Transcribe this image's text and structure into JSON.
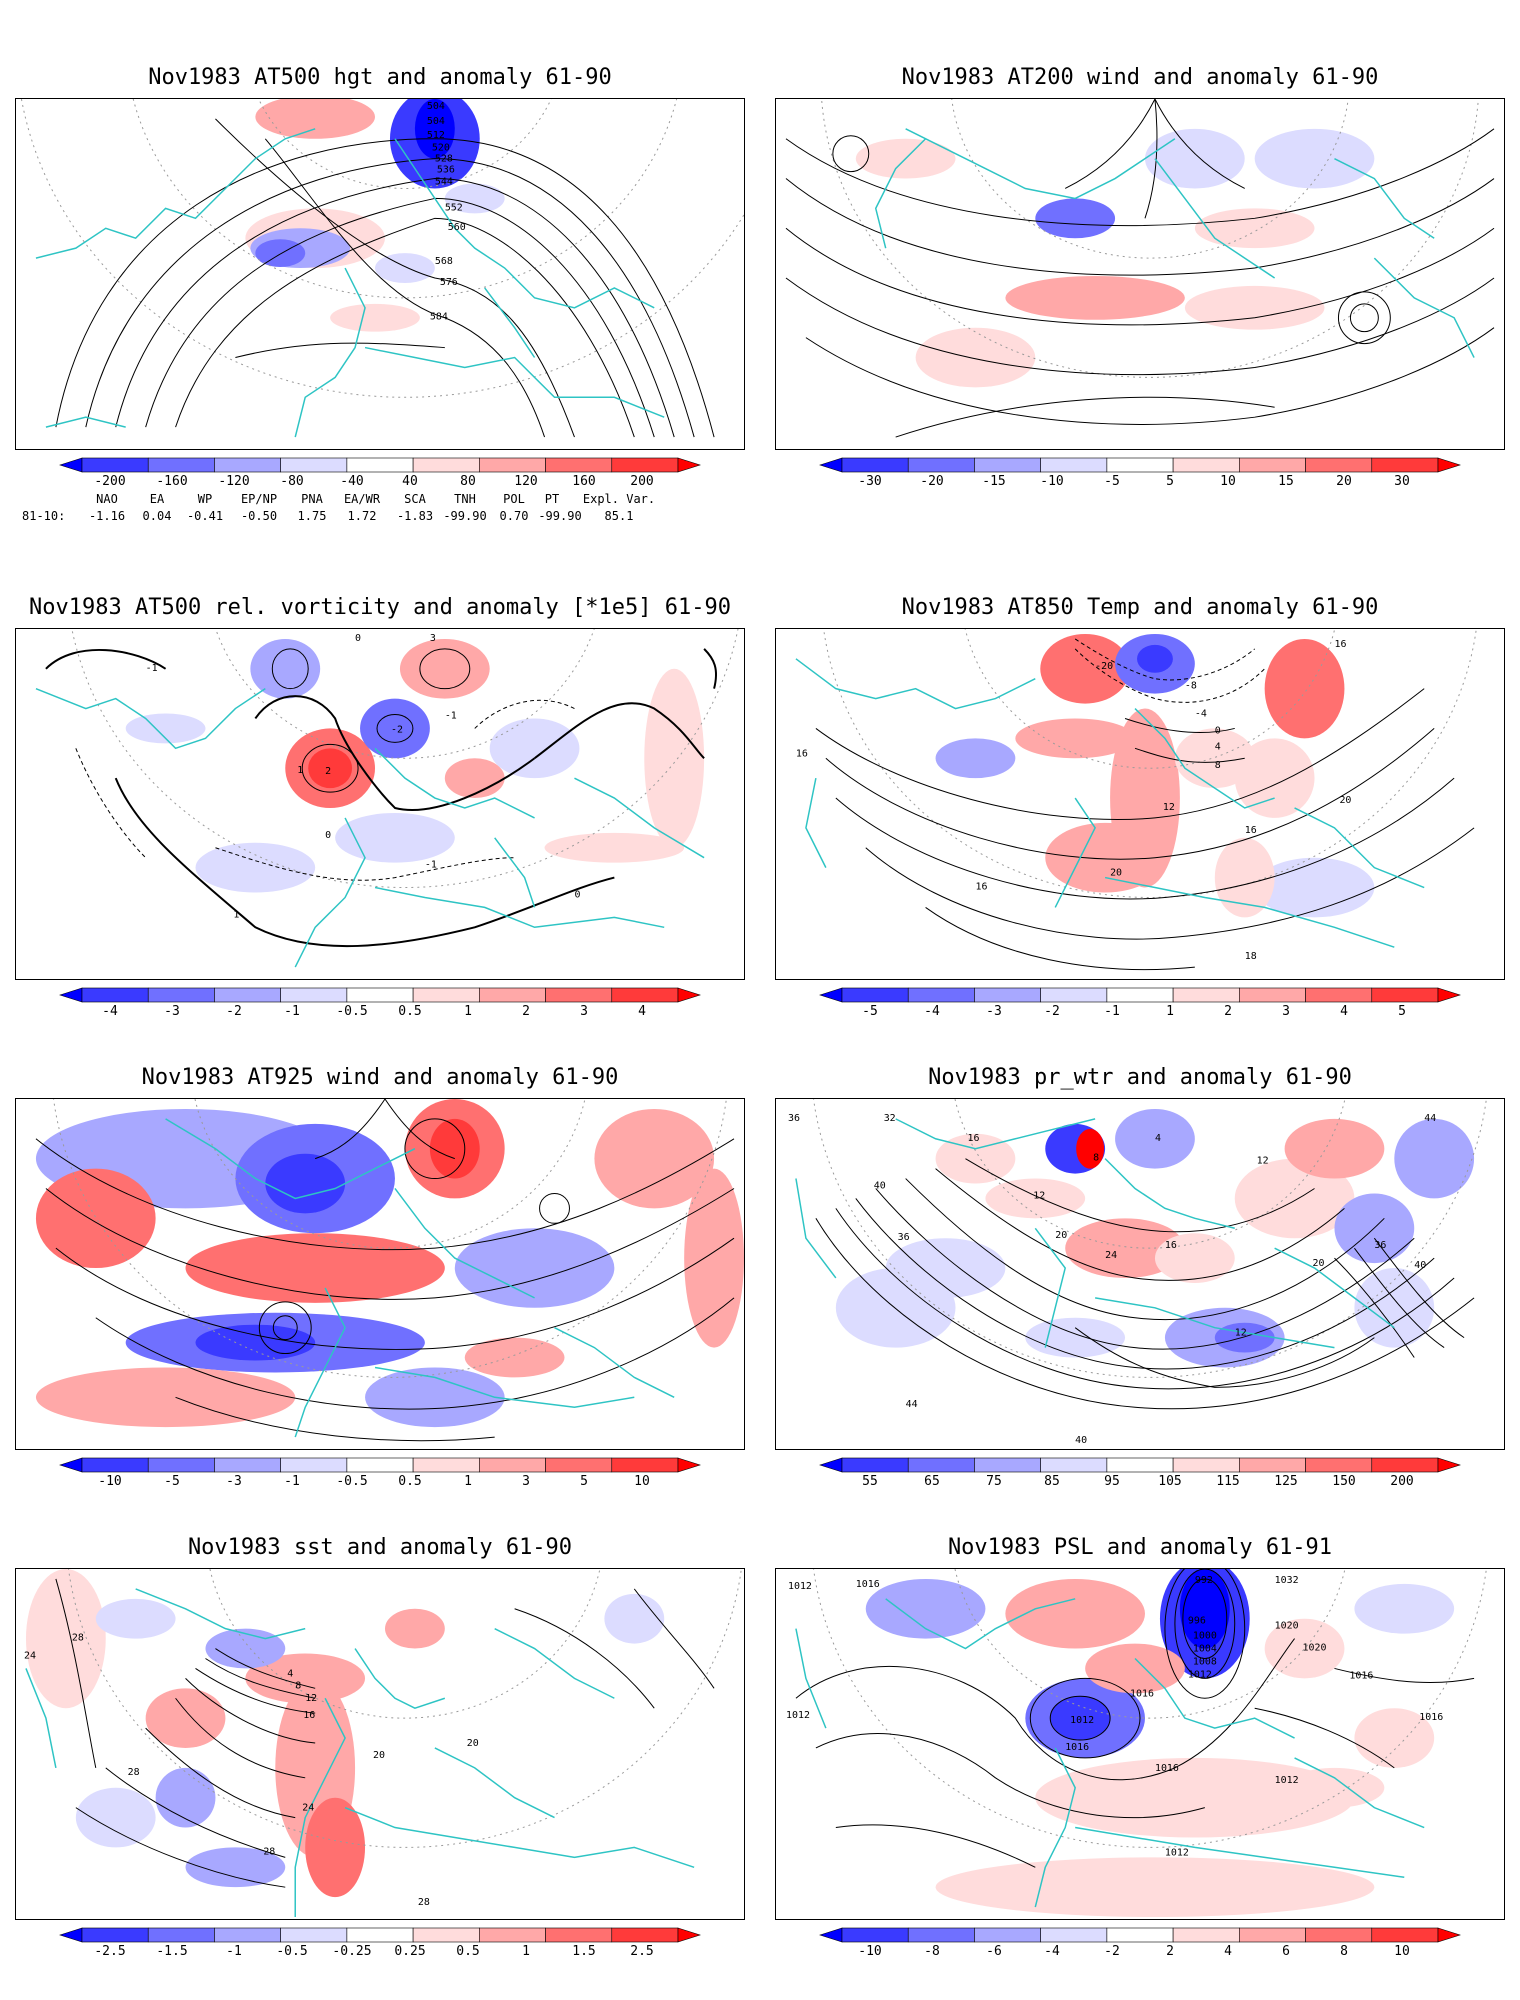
{
  "colors": {
    "coast": "#2ec4c4",
    "contour": "#000000",
    "grid": "#9a9a9a",
    "ramp": [
      "#0000ff",
      "#3a3aff",
      "#7070ff",
      "#a8a8ff",
      "#dcdcff",
      "#ffffff",
      "#ffdcdc",
      "#ffa8a8",
      "#ff7070",
      "#ff3a3a",
      "#ff0000"
    ]
  },
  "panels": [
    {
      "id": "p1",
      "title": "Nov1983 AT500 hgt and anomaly 61-90",
      "colorbar": [
        "-200",
        "-160",
        "-120",
        "-80",
        "-40",
        "40",
        "80",
        "120",
        "160",
        "200"
      ],
      "contour_labels": [
        "504",
        "512",
        "520",
        "528",
        "536",
        "544",
        "552",
        "560",
        "568",
        "576",
        "584"
      ]
    },
    {
      "id": "p2",
      "title": "Nov1983 AT200 wind and anomaly 61-90",
      "colorbar": [
        "-30",
        "-20",
        "-15",
        "-10",
        "-5",
        "5",
        "10",
        "15",
        "20",
        "30"
      ],
      "contour_labels": []
    },
    {
      "id": "p3",
      "title": "Nov1983 AT500 rel. vorticity and anomaly [*1e5] 61-90",
      "colorbar": [
        "-4",
        "-3",
        "-2",
        "-1",
        "-0.5",
        "0.5",
        "1",
        "2",
        "3",
        "4"
      ],
      "contour_labels": [
        "-1",
        "0",
        "1",
        "2",
        "-2",
        "3",
        "-1",
        "0",
        "1",
        "-1",
        "0"
      ]
    },
    {
      "id": "p4",
      "title": "Nov1983 AT850 Temp and anomaly 61-90",
      "colorbar": [
        "-5",
        "-4",
        "-3",
        "-2",
        "-1",
        "1",
        "2",
        "3",
        "4",
        "5"
      ],
      "contour_labels": [
        "-20",
        "-8",
        "-4",
        "0",
        "4",
        "8",
        "12",
        "16",
        "20",
        "16",
        "20",
        "16",
        "16",
        "18"
      ]
    },
    {
      "id": "p5",
      "title": "Nov1983 AT925 wind and anomaly 61-90",
      "colorbar": [
        "-10",
        "-5",
        "-3",
        "-1",
        "-0.5",
        "0.5",
        "1",
        "3",
        "5",
        "10"
      ],
      "contour_labels": []
    },
    {
      "id": "p6",
      "title": "Nov1983 pr_wtr and anomaly 61-90",
      "colorbar": [
        "55",
        "65",
        "75",
        "85",
        "95",
        "105",
        "115",
        "125",
        "150",
        "200"
      ],
      "contour_labels": [
        "36",
        "32",
        "16",
        "12",
        "4",
        "8",
        "20",
        "24",
        "16",
        "12",
        "36",
        "40",
        "44",
        "12",
        "20",
        "36",
        "40",
        "44",
        "40"
      ]
    },
    {
      "id": "p7",
      "title": "Nov1983 sst and anomaly 61-90",
      "colorbar": [
        "-2.5",
        "-1.5",
        "-1",
        "-0.5",
        "-0.25",
        "0.25",
        "0.5",
        "1",
        "1.5",
        "2.5"
      ],
      "contour_labels": [
        "28",
        "24",
        "4",
        "8",
        "12",
        "16",
        "20",
        "24",
        "28",
        "20",
        "28",
        "28"
      ]
    },
    {
      "id": "p8",
      "title": "Nov1983 PSL and anomaly 61-91",
      "colorbar": [
        "-10",
        "-8",
        "-6",
        "-4",
        "-2",
        "2",
        "4",
        "6",
        "8",
        "10"
      ],
      "contour_labels": [
        "1012",
        "1016",
        "992",
        "996",
        "1000",
        "1004",
        "1008",
        "1012",
        "1016",
        "1020",
        "1012",
        "1016",
        "1012",
        "1016",
        "1012",
        "1016",
        "1012",
        "1016",
        "1020",
        "1032"
      ]
    }
  ],
  "teleconnections": {
    "headers": [
      "NAO",
      "EA",
      "WP",
      "EP/NP",
      "PNA",
      "EA/WR",
      "SCA",
      "TNH",
      "POL",
      "PT",
      "Expl. Var."
    ],
    "row_label": "81-10:",
    "values": [
      "-1.16",
      "0.04",
      "-0.41",
      "-0.50",
      "1.75",
      "1.72",
      "-1.83",
      "-99.90",
      "0.70",
      "-99.90",
      "85.1"
    ]
  }
}
